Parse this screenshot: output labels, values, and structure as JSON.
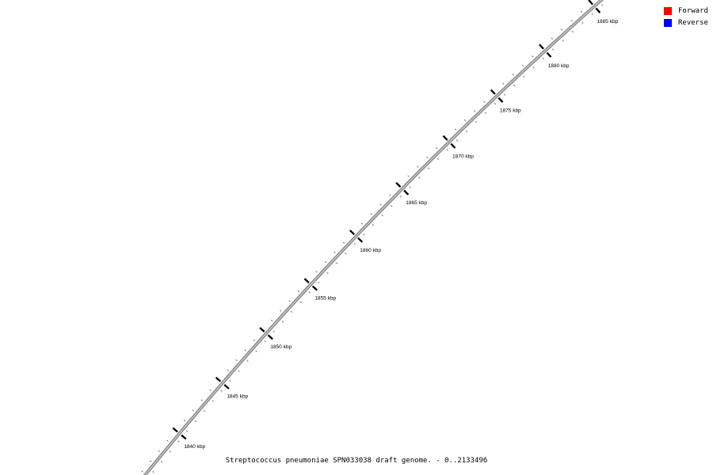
{
  "title": "Streptococcus pneumoniae SPN033038 draft genome. - 0..2133496",
  "legend": {
    "items": [
      {
        "label": "Forward",
        "color": "#ff0000"
      },
      {
        "label": "Reverse",
        "color": "#0000ff"
      }
    ]
  },
  "chart_data": {
    "type": "line",
    "title": "Streptococcus pneumoniae SPN033038 draft genome. - 0..2133496",
    "organism": "Streptococcus pneumoniae SPN033038",
    "sequence_range_bp": [
      0,
      2133496
    ],
    "unit": "kbp",
    "visible_region_kbp": [
      1836,
      1887
    ],
    "major_tick_interval_kbp": 5,
    "minor_tick_interval_kbp": 1,
    "major_ticks_kbp": [
      1840,
      1845,
      1850,
      1855,
      1860,
      1865,
      1870,
      1875,
      1880,
      1885
    ],
    "tick_label_suffix": " kbp",
    "tick_labels": [
      "1840 kbp",
      "1845 kbp",
      "1850 kbp",
      "1855 kbp",
      "1860 kbp",
      "1865 kbp",
      "1870 kbp",
      "1875 kbp",
      "1880 kbp",
      "1885 kbp"
    ],
    "legend_position": "top-right",
    "legend_entries": [
      "Forward",
      "Reverse"
    ],
    "colors": {
      "backbone": "#858585",
      "backbone_highlight": "#c2c2c2",
      "minor_tick": "#8a8a8a",
      "major_tick": "#000000",
      "label": "#000000",
      "forward": "#ff0000",
      "reverse": "#0000ff"
    }
  }
}
